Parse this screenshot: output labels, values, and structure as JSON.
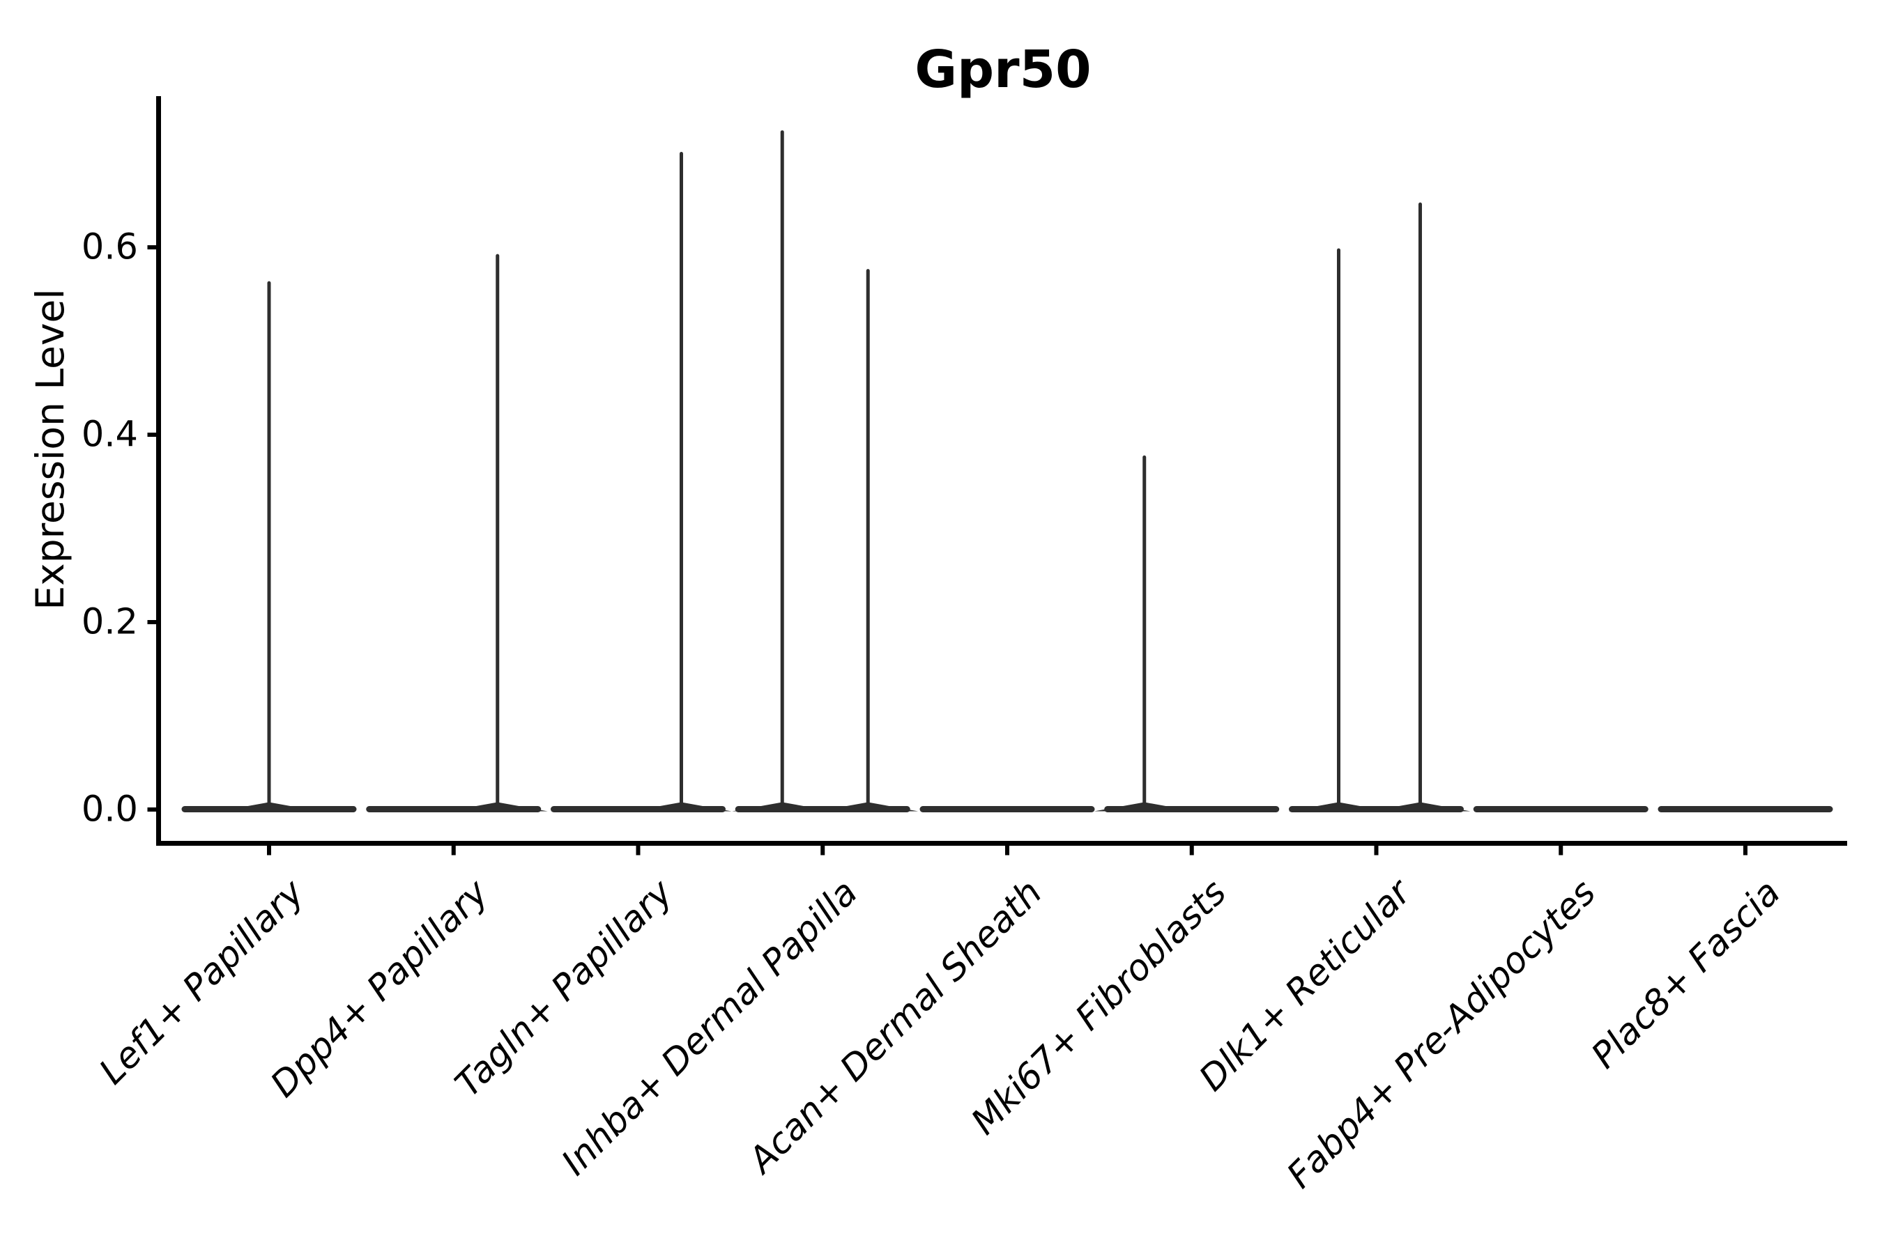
{
  "title": "Gpr50",
  "ylabel": "Expression Level",
  "colors": {
    "violin": "#2e2e2e",
    "axis": "#000000",
    "text": "#000000"
  },
  "chart_data": {
    "type": "violin",
    "title": "Gpr50",
    "xlabel": "",
    "ylabel": "Expression Level",
    "ylim": [
      0.0,
      0.76
    ],
    "grid": false,
    "legend": "none",
    "y_ticks": [
      {
        "value": 0.0,
        "label": "0.0"
      },
      {
        "value": 0.2,
        "label": "0.2"
      },
      {
        "value": 0.4,
        "label": "0.4"
      },
      {
        "value": 0.6,
        "label": "0.6"
      }
    ],
    "categories": [
      "Lef1+ Papillary",
      "Dpp4+ Papillary",
      "Tagln+ Papillary",
      "Inhba+ Dermal Papilla",
      "Acan+ Dermal Sheath",
      "Mki67+ Fibroblasts",
      "Dlk1+ Reticular",
      "Fabp4+ Pre-Adipocytes",
      "Plac8+ Fascia"
    ],
    "series": [
      {
        "name": "Lef1+ Papillary",
        "bulk_at_zero": true,
        "spikes": [
          {
            "dx": 0,
            "max": 0.562
          }
        ]
      },
      {
        "name": "Dpp4+ Papillary",
        "bulk_at_zero": true,
        "spikes": [
          {
            "dx": 63,
            "max": 0.591
          }
        ]
      },
      {
        "name": "Tagln+ Papillary",
        "bulk_at_zero": true,
        "spikes": [
          {
            "dx": 62,
            "max": 0.7
          }
        ]
      },
      {
        "name": "Inhba+ Dermal Papilla",
        "bulk_at_zero": true,
        "spikes": [
          {
            "dx": -58,
            "max": 0.723
          },
          {
            "dx": 65,
            "max": 0.575
          }
        ]
      },
      {
        "name": "Acan+ Dermal Sheath",
        "bulk_at_zero": true,
        "spikes": []
      },
      {
        "name": "Mki67+ Fibroblasts",
        "bulk_at_zero": true,
        "spikes": [
          {
            "dx": -68,
            "max": 0.376
          }
        ]
      },
      {
        "name": "Dlk1+ Reticular",
        "bulk_at_zero": true,
        "spikes": [
          {
            "dx": -54,
            "max": 0.597
          },
          {
            "dx": 63,
            "max": 0.646
          }
        ]
      },
      {
        "name": "Fabp4+ Pre-Adipocytes",
        "bulk_at_zero": true,
        "spikes": []
      },
      {
        "name": "Plac8+ Fascia",
        "bulk_at_zero": true,
        "spikes": []
      }
    ]
  }
}
